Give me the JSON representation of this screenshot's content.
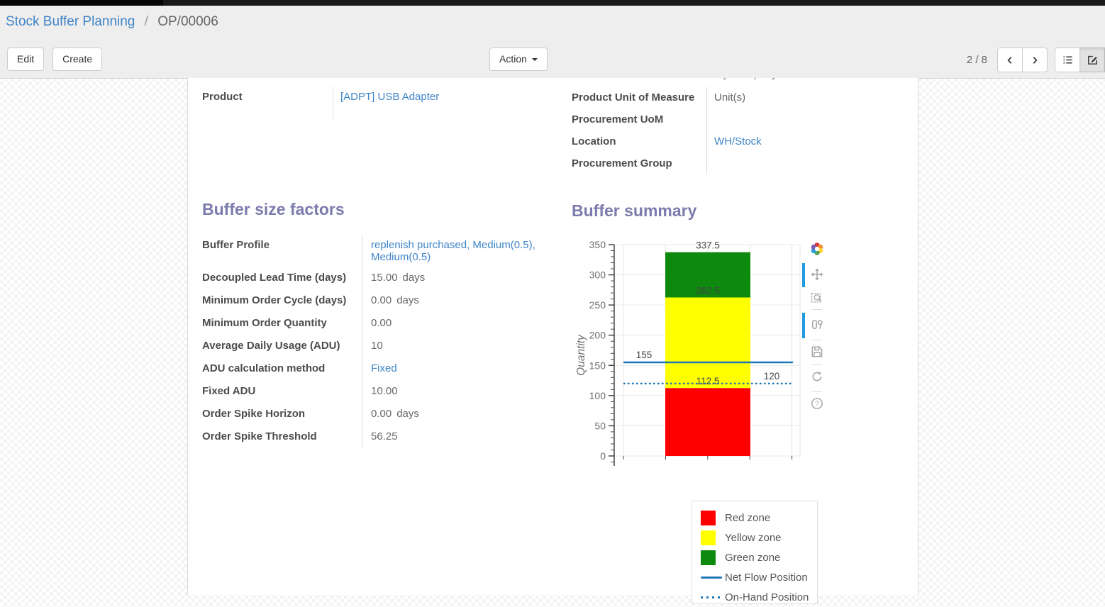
{
  "breadcrumb": {
    "parent": "Stock Buffer Planning",
    "separator": "/",
    "current": "OP/00006"
  },
  "buttons": {
    "edit": "Edit",
    "create": "Create",
    "action": "Action"
  },
  "pager": {
    "counter": "2 / 8"
  },
  "icons": {
    "help_glyph": "?"
  },
  "modebar_icons": [
    "plotly-logo",
    "pan",
    "box-zoom",
    "toggle-hover-compare",
    "save-snapshot",
    "reset-axes",
    "help"
  ],
  "form": {
    "clipped_company": "My Company",
    "left_group": {
      "rows": [
        {
          "label": "Product",
          "value": "[ADPT] USB Adapter"
        }
      ]
    },
    "right_group": {
      "rows": [
        {
          "label": "Product Unit of Measure",
          "value": "Unit(s)"
        },
        {
          "label": "Procurement UoM",
          "value": ""
        },
        {
          "label": "Location",
          "value": "WH/Stock"
        },
        {
          "label": "Procurement Group",
          "value": ""
        }
      ]
    },
    "factors": {
      "title": "Buffer size factors",
      "rows": [
        {
          "label": "Buffer Profile",
          "value": "replenish purchased, Medium(0.5), Medium(0.5)"
        },
        {
          "label": "Decoupled Lead Time (days)",
          "value": "15.00",
          "unit": "days"
        },
        {
          "label": "Minimum Order Cycle (days)",
          "value": "0.00",
          "unit": "days"
        },
        {
          "label": "Minimum Order Quantity",
          "value": "0.00"
        },
        {
          "label": "Average Daily Usage (ADU)",
          "value": "10"
        },
        {
          "label": "ADU calculation method",
          "value": "Fixed"
        },
        {
          "label": "Fixed ADU",
          "value": "10.00"
        },
        {
          "label": "Order Spike Horizon",
          "value": "0.00",
          "unit": "days"
        },
        {
          "label": "Order Spike Threshold",
          "value": "56.25"
        }
      ]
    },
    "summary": {
      "title": "Buffer summary"
    }
  },
  "chart_data": {
    "type": "bar",
    "title": "Buffer summary",
    "xlabel": "",
    "ylabel": "Quantity",
    "ylim": [
      0,
      350
    ],
    "ytick_step": 50,
    "grid": true,
    "zones": [
      {
        "name": "Red zone",
        "from": 0,
        "to": 112.5,
        "color": "#ff0000",
        "label": "112.5"
      },
      {
        "name": "Yellow zone",
        "from": 112.5,
        "to": 262.5,
        "color": "#ffff00",
        "label": "262.5"
      },
      {
        "name": "Green zone",
        "from": 262.5,
        "to": 337.5,
        "color": "#0d8a0d",
        "label": "337.5"
      }
    ],
    "lines": [
      {
        "name": "Net Flow Position",
        "value": 155,
        "style": "solid",
        "color": "#1f77b4",
        "label": "155",
        "label_side": "left"
      },
      {
        "name": "On-Hand Position",
        "value": 120,
        "style": "dotted",
        "color": "#1f77b4",
        "label": "120",
        "label_side": "right"
      }
    ],
    "legend": [
      {
        "label": "Red zone",
        "kind": "box",
        "color": "#ff0000"
      },
      {
        "label": "Yellow zone",
        "kind": "box",
        "color": "#ffff00"
      },
      {
        "label": "Green zone",
        "kind": "box",
        "color": "#0d8a0d"
      },
      {
        "label": "Net Flow Position",
        "kind": "solid-line",
        "color": "#1f77b4"
      },
      {
        "label": "On-Hand Position",
        "kind": "dotted-line",
        "color": "#1f77b4"
      }
    ],
    "legend_position": "bottom-right"
  }
}
